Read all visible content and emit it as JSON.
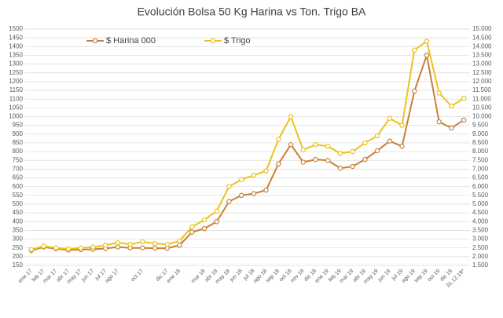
{
  "chart_data": {
    "type": "line",
    "title": "Evolución Bolsa 50 Kg Harina vs Ton. Trigo BA",
    "categories": [
      "ene 17",
      "feb 17",
      "mar 17",
      "abr 17",
      "may 17",
      "jun 17",
      "jul 17",
      "ago 17",
      null,
      "oct 17",
      null,
      "dic 17",
      "ene 18",
      null,
      "mar 18",
      "abr 18",
      "may 18",
      "jun 18",
      "jul 18",
      "ago 18",
      "sep 18",
      "oct 18",
      "nov 18",
      "dic 18",
      "ene 19",
      "feb 19",
      "mar 19",
      "abr 19",
      "may 19",
      "jun 19",
      "jul 19",
      "ago 19",
      "sep 19",
      "oct 19",
      "dic 19",
      "31.12.19*"
    ],
    "series": [
      {
        "name": "$ Harina 000",
        "color": "#c9803a",
        "values": [
          235,
          255,
          245,
          238,
          240,
          242,
          247,
          255,
          250,
          250,
          248,
          248,
          265,
          340,
          360,
          400,
          515,
          550,
          560,
          580,
          730,
          840,
          740,
          755,
          750,
          705,
          715,
          755,
          805,
          860,
          830,
          1145,
          1350,
          970,
          935,
          980
        ]
      },
      {
        "name": "$ Trigo",
        "color": "#ecc21c",
        "axis": "y2",
        "values": [
          2400,
          2600,
          2500,
          2450,
          2500,
          2550,
          2650,
          2800,
          2700,
          2850,
          2750,
          2700,
          2900,
          3700,
          4100,
          4600,
          6000,
          6400,
          6650,
          6900,
          8700,
          10000,
          8100,
          8400,
          8300,
          7900,
          8000,
          8500,
          8900,
          9900,
          9500,
          13800,
          14300,
          11350,
          10600,
          11050
        ]
      }
    ],
    "ylim": [
      150,
      1500
    ],
    "yticks": [
      150,
      200,
      250,
      300,
      350,
      400,
      450,
      500,
      550,
      600,
      650,
      700,
      750,
      800,
      850,
      900,
      950,
      1000,
      1050,
      1100,
      1150,
      1200,
      1250,
      1300,
      1350,
      1400,
      1450,
      1500
    ],
    "y2lim": [
      1500,
      15000
    ],
    "y2ticks": [
      {
        "value": 1500,
        "label": "1.500"
      },
      {
        "value": 2000,
        "label": "2.000"
      },
      {
        "value": 2500,
        "label": "2.500"
      },
      {
        "value": 3000,
        "label": "3.000"
      },
      {
        "value": 3500,
        "label": "3.500"
      },
      {
        "value": 4000,
        "label": "4.000"
      },
      {
        "value": 4500,
        "label": "4.500"
      },
      {
        "value": 5000,
        "label": "5.000"
      },
      {
        "value": 5500,
        "label": "5.500"
      },
      {
        "value": 6000,
        "label": "6.000"
      },
      {
        "value": 6500,
        "label": "6.500"
      },
      {
        "value": 7000,
        "label": "7.000"
      },
      {
        "value": 7500,
        "label": "7.500"
      },
      {
        "value": 8000,
        "label": "8.000"
      },
      {
        "value": 8500,
        "label": "8.500"
      },
      {
        "value": 9000,
        "label": "9.000"
      },
      {
        "value": 9500,
        "label": "9.500"
      },
      {
        "value": 10000,
        "label": "10.000"
      },
      {
        "value": 10500,
        "label": "10.500"
      },
      {
        "value": 11000,
        "label": "11.000"
      },
      {
        "value": 11500,
        "label": "11.500"
      },
      {
        "value": 12000,
        "label": "12.000"
      },
      {
        "value": 12500,
        "label": "12.500"
      },
      {
        "value": 13000,
        "label": "13.000"
      },
      {
        "value": 13500,
        "label": "13.500"
      },
      {
        "value": 14000,
        "label": "14.000"
      },
      {
        "value": 14500,
        "label": "14.500"
      },
      {
        "value": 15000,
        "label": "15.000"
      }
    ],
    "grid": true
  }
}
